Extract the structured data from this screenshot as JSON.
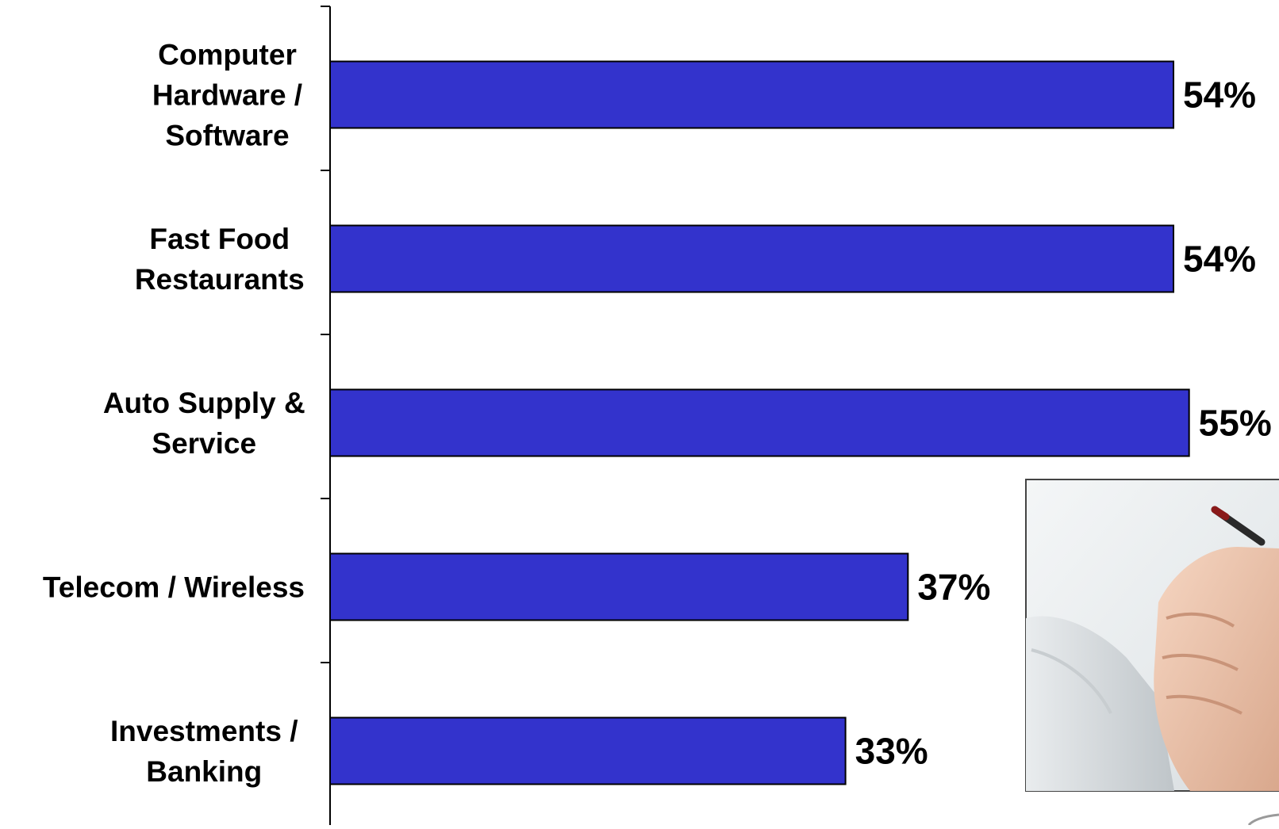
{
  "chart_data": {
    "type": "bar",
    "orientation": "horizontal",
    "categories": [
      [
        "Computer",
        "Hardware /",
        "Software"
      ],
      [
        "Fast Food",
        "Restaurants"
      ],
      [
        "Auto Supply &",
        "Service"
      ],
      [
        "Telecom / Wireless"
      ],
      [
        "Investments /",
        "Banking"
      ]
    ],
    "values": [
      54,
      54,
      55,
      37,
      33
    ],
    "value_labels": [
      "54%",
      "54%",
      "55%",
      "37%",
      "33%"
    ],
    "unit": "%",
    "xlim": [
      0,
      55
    ],
    "bar_color": "#3333CC",
    "grid": false,
    "legend": "none",
    "decoration": "photo-hand-holding-pen"
  }
}
